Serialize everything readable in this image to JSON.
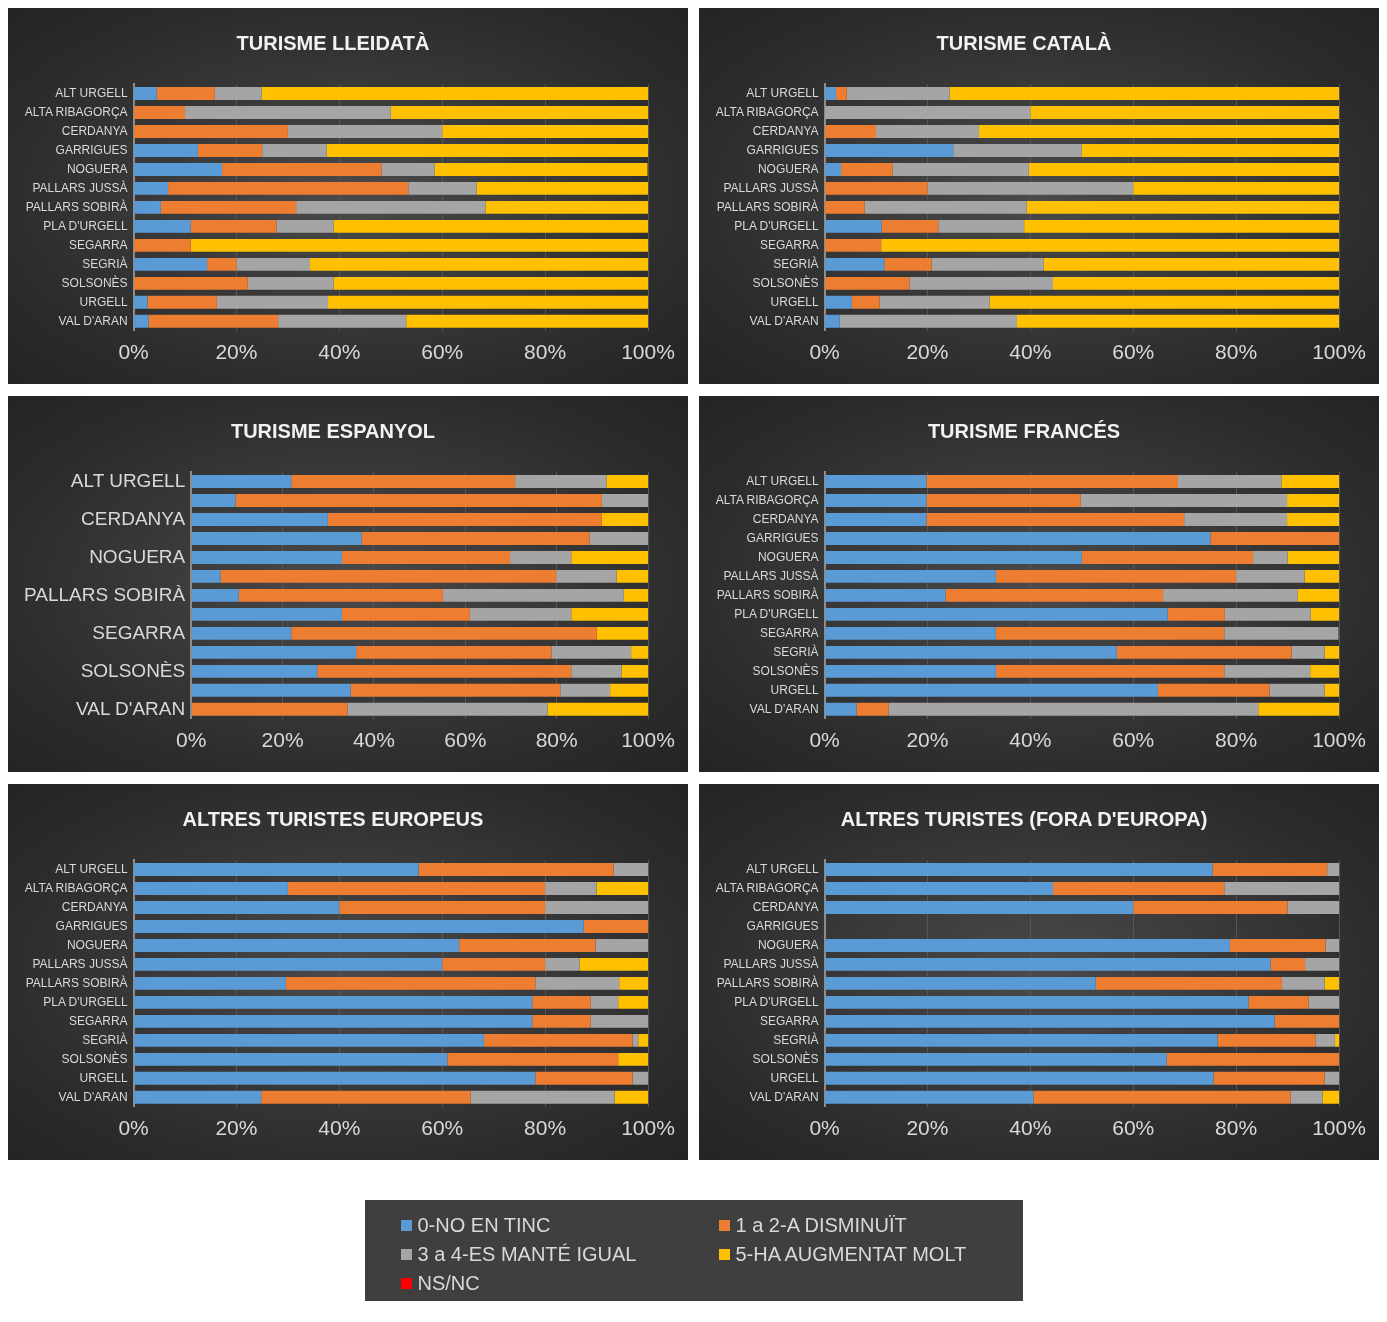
{
  "chart_data": [
    {
      "type": "bar",
      "orientation": "horizontal",
      "stacked": true,
      "title": "TURISME LLEIDATÀ",
      "categories": [
        "ALT URGELL",
        "ALTA RIBAGORÇA",
        "CERDANYA",
        "GARRIGUES",
        "NOGUERA",
        "PALLARS JUSSÀ",
        "PALLARS SOBIRÀ",
        "PLA D'URGELL",
        "SEGARRA",
        "SEGRIÀ",
        "SOLSONÈS",
        "URGELL",
        "VAL D'ARAN"
      ],
      "xlim": [
        0,
        100
      ],
      "xticks": [
        {
          "value": 0,
          "label": "0%"
        },
        {
          "value": 20,
          "label": "20%"
        },
        {
          "value": 40,
          "label": "40%"
        },
        {
          "value": 60,
          "label": "60%"
        },
        {
          "value": 80,
          "label": "80%"
        },
        {
          "value": 100,
          "label": "100%"
        }
      ],
      "grid": "x",
      "legend": "bottom",
      "series": [
        {
          "name": "0-NO EN TINC",
          "color": "#5b9bd5",
          "values": [
            4.5,
            0,
            0,
            12.5,
            17.2,
            6.7,
            5.3,
            11.1,
            0,
            14.3,
            0,
            2.7,
            2.9
          ]
        },
        {
          "name": "1 a 2-A DISMINUÏT",
          "color": "#ed7d31",
          "values": [
            11.3,
            10,
            30,
            12.5,
            31,
            46.7,
            26.3,
            16.7,
            11.1,
            5.7,
            22.2,
            13.5,
            25.2
          ]
        },
        {
          "name": "3 a 4-ES MANTÉ IGUAL",
          "color": "#a5a5a5",
          "values": [
            9.1,
            40,
            30,
            12.5,
            10.3,
            13.3,
            36.8,
            11.1,
            0,
            14.3,
            16.7,
            21.6,
            24.9
          ]
        },
        {
          "name": "5-HA AUGMENTAT MOLT",
          "color": "#ffc000",
          "values": [
            75.1,
            50,
            40,
            62.5,
            41.4,
            33.3,
            31.6,
            61.1,
            88.9,
            65.7,
            61.1,
            62.2,
            47
          ]
        },
        {
          "name": "NS/NC",
          "color": "#ff0000",
          "values": [
            0,
            0,
            0,
            0,
            0,
            0,
            0,
            0,
            0,
            0,
            0,
            0,
            0
          ]
        }
      ]
    },
    {
      "type": "bar",
      "orientation": "horizontal",
      "stacked": true,
      "title": "TURISME CATALÀ",
      "categories": [
        "ALT URGELL",
        "ALTA RIBAGORÇA",
        "CERDANYA",
        "GARRIGUES",
        "NOGUERA",
        "PALLARS JUSSÀ",
        "PALLARS SOBIRÀ",
        "PLA D'URGELL",
        "SEGARRA",
        "SEGRIÀ",
        "SOLSONÈS",
        "URGELL",
        "VAL D'ARAN"
      ],
      "xlim": [
        0,
        100
      ],
      "xticks": [
        {
          "value": 0,
          "label": "0%"
        },
        {
          "value": 20,
          "label": "20%"
        },
        {
          "value": 40,
          "label": "40%"
        },
        {
          "value": 60,
          "label": "60%"
        },
        {
          "value": 80,
          "label": "80%"
        },
        {
          "value": 100,
          "label": "100%"
        }
      ],
      "grid": "x",
      "series": [
        {
          "color": "#5b9bd5",
          "values": [
            2.2,
            0,
            0,
            25,
            3.2,
            0,
            0,
            11.1,
            0,
            11.6,
            0,
            5.3,
            2.9
          ]
        },
        {
          "color": "#ed7d31",
          "values": [
            2.1,
            0,
            10,
            0,
            10,
            20,
            7.8,
            11,
            11,
            9.2,
            16.5,
            5.4,
            0
          ]
        },
        {
          "color": "#a5a5a5",
          "values": [
            20,
            40,
            20,
            25,
            26.5,
            40,
            31.5,
            16.7,
            0,
            21.8,
            27.9,
            21.4,
            34.5
          ]
        },
        {
          "color": "#ffc000",
          "values": [
            75.7,
            60,
            70,
            50,
            60.3,
            40,
            60.7,
            61.2,
            89,
            57.4,
            55.6,
            67.9,
            62.6
          ]
        },
        {
          "color": "#ff0000",
          "values": [
            0,
            0,
            0,
            0,
            0,
            0,
            0,
            0,
            0,
            0,
            0,
            0,
            0
          ]
        }
      ]
    },
    {
      "type": "bar",
      "orientation": "horizontal",
      "stacked": true,
      "title": "TURISME ESPANYOL",
      "categories": [
        "ALT URGELL",
        null,
        "CERDANYA",
        null,
        "NOGUERA",
        null,
        "PALLARS SOBIRÀ",
        null,
        "SEGARRA",
        null,
        "SOLSONÈS",
        null,
        "VAL D'ARAN"
      ],
      "xlim": [
        0,
        100
      ],
      "xticks": [
        {
          "value": 0,
          "label": "0%"
        },
        {
          "value": 20,
          "label": "20%"
        },
        {
          "value": 40,
          "label": "40%"
        },
        {
          "value": 60,
          "label": "60%"
        },
        {
          "value": 80,
          "label": "80%"
        },
        {
          "value": 100,
          "label": "100%"
        }
      ],
      "grid": "x",
      "series": [
        {
          "color": "#5b9bd5",
          "values": [
            21.9,
            9.7,
            29.9,
            37.3,
            33,
            6.4,
            10.4,
            33,
            21.9,
            36.1,
            27.6,
            34.9,
            0
          ]
        },
        {
          "color": "#ed7d31",
          "values": [
            49,
            80.2,
            60,
            49.9,
            36.8,
            73.5,
            44.7,
            28,
            66.9,
            42.8,
            55.6,
            45.9,
            34.2
          ]
        },
        {
          "color": "#a5a5a5",
          "values": [
            20,
            10.1,
            0,
            12.8,
            13.4,
            13.2,
            39.6,
            22.2,
            0,
            17.4,
            11,
            10.9,
            43.8
          ]
        },
        {
          "color": "#ffc000",
          "values": [
            9.1,
            0,
            10.1,
            0,
            16.8,
            6.9,
            5.3,
            16.8,
            11.2,
            3.7,
            5.8,
            8.3,
            22
          ]
        },
        {
          "color": "#ff0000",
          "values": [
            0,
            0,
            0,
            0,
            0,
            0,
            0,
            0,
            0,
            0,
            0,
            0,
            0
          ]
        }
      ]
    },
    {
      "type": "bar",
      "orientation": "horizontal",
      "stacked": true,
      "title": "TURISME FRANCÉS",
      "categories": [
        "ALT URGELL",
        "ALTA RIBAGORÇA",
        "CERDANYA",
        "GARRIGUES",
        "NOGUERA",
        "PALLARS JUSSÀ",
        "PALLARS SOBIRÀ",
        "PLA D'URGELL",
        "SEGARRA",
        "SEGRIÀ",
        "SOLSONÈS",
        "URGELL",
        "VAL D'ARAN"
      ],
      "xlim": [
        0,
        100
      ],
      "xticks": [
        {
          "value": 0,
          "label": "0%"
        },
        {
          "value": 20,
          "label": "20%"
        },
        {
          "value": 40,
          "label": "40%"
        },
        {
          "value": 60,
          "label": "60%"
        },
        {
          "value": 80,
          "label": "80%"
        },
        {
          "value": 100,
          "label": "100%"
        }
      ],
      "grid": "x",
      "series": [
        {
          "color": "#5b9bd5",
          "values": [
            19.8,
            19.8,
            19.8,
            75,
            50,
            33.3,
            23.5,
            66.7,
            33.3,
            56.8,
            33.3,
            64.8,
            6.2
          ]
        },
        {
          "color": "#ed7d31",
          "values": [
            48.9,
            30,
            50.1,
            25,
            33.3,
            46.7,
            42.3,
            11.1,
            44.4,
            34,
            44.4,
            21.7,
            6.2
          ]
        },
        {
          "color": "#a5a5a5",
          "values": [
            20.1,
            40.1,
            20,
            0,
            6.7,
            13.3,
            26.2,
            16.7,
            22.2,
            6.4,
            16.7,
            10.7,
            71.9
          ]
        },
        {
          "color": "#ffc000",
          "values": [
            11.2,
            10.1,
            10.1,
            0,
            10,
            6.7,
            8,
            5.6,
            0,
            2.8,
            5.6,
            2.8,
            15.7
          ]
        },
        {
          "color": "#ff0000",
          "values": [
            0,
            0,
            0,
            0,
            0,
            0,
            0,
            0,
            0,
            0,
            0,
            0,
            0
          ]
        }
      ]
    },
    {
      "type": "bar",
      "orientation": "horizontal",
      "stacked": true,
      "title": "ALTRES TURISTES EUROPEUS",
      "categories": [
        "ALT URGELL",
        "ALTA RIBAGORÇA",
        "CERDANYA",
        "GARRIGUES",
        "NOGUERA",
        "PALLARS JUSSÀ",
        "PALLARS SOBIRÀ",
        "PLA D'URGELL",
        "SEGARRA",
        "SEGRIÀ",
        "SOLSONÈS",
        "URGELL",
        "VAL D'ARAN"
      ],
      "xlim": [
        0,
        100
      ],
      "xticks": [
        {
          "value": 0,
          "label": "0%"
        },
        {
          "value": 20,
          "label": "20%"
        },
        {
          "value": 40,
          "label": "40%"
        },
        {
          "value": 60,
          "label": "60%"
        },
        {
          "value": 80,
          "label": "80%"
        },
        {
          "value": 100,
          "label": "100%"
        }
      ],
      "grid": "x",
      "series": [
        {
          "color": "#5b9bd5",
          "values": [
            55.4,
            30,
            40,
            87.5,
            63.3,
            60,
            29.6,
            77.5,
            77.5,
            68.1,
            61,
            78.1,
            24.8
          ]
        },
        {
          "color": "#ed7d31",
          "values": [
            37.9,
            50,
            40,
            12.5,
            26.5,
            20,
            48.5,
            11.3,
            11.3,
            28.9,
            33.2,
            18.9,
            40.7
          ]
        },
        {
          "color": "#a5a5a5",
          "values": [
            6.7,
            10,
            20,
            0,
            10.2,
            6.7,
            16.3,
            5.4,
            11.2,
            1.1,
            0,
            3,
            28
          ]
        },
        {
          "color": "#ffc000",
          "values": [
            0,
            10,
            0,
            0,
            0,
            13.3,
            5.6,
            5.8,
            0,
            1.9,
            5.8,
            0,
            6.5
          ]
        },
        {
          "color": "#ff0000",
          "values": [
            0,
            0,
            0,
            0,
            0,
            0,
            0,
            0,
            0,
            0,
            0,
            0,
            0
          ]
        }
      ]
    },
    {
      "type": "bar",
      "orientation": "horizontal",
      "stacked": true,
      "title": "ALTRES TURISTES (FORA D'EUROPA)",
      "categories": [
        "ALT URGELL",
        "ALTA RIBAGORÇA",
        "CERDANYA",
        "GARRIGUES",
        "NOGUERA",
        "PALLARS JUSSÀ",
        "PALLARS SOBIRÀ",
        "PLA D'URGELL",
        "SEGARRA",
        "SEGRIÀ",
        "SOLSONÈS",
        "URGELL",
        "VAL D'ARAN"
      ],
      "xlim": [
        0,
        100
      ],
      "xticks": [
        {
          "value": 0,
          "label": "0%"
        },
        {
          "value": 20,
          "label": "20%"
        },
        {
          "value": 40,
          "label": "40%"
        },
        {
          "value": 60,
          "label": "60%"
        },
        {
          "value": 80,
          "label": "80%"
        },
        {
          "value": 100,
          "label": "100%"
        }
      ],
      "grid": "x",
      "series": [
        {
          "color": "#5b9bd5",
          "values": [
            75.4,
            44.4,
            60,
            null,
            78.8,
            86.7,
            52.7,
            82.4,
            87.5,
            76.4,
            66.5,
            75.6,
            40.6
          ]
        },
        {
          "color": "#ed7d31",
          "values": [
            22.3,
            33.3,
            30,
            null,
            18.6,
            6.7,
            36.2,
            11.7,
            12.5,
            19,
            33.5,
            21.6,
            50
          ]
        },
        {
          "color": "#a5a5a5",
          "values": [
            2.3,
            22.3,
            10,
            null,
            2.6,
            6.6,
            8.3,
            5.9,
            0,
            3.8,
            0,
            2.8,
            6.2
          ]
        },
        {
          "color": "#ffc000",
          "values": [
            0,
            0,
            0,
            null,
            0,
            0,
            2.8,
            0,
            0,
            0.8,
            0,
            0,
            3.2
          ]
        },
        {
          "color": "#ff0000",
          "values": [
            0,
            0,
            0,
            null,
            0,
            0,
            0,
            0,
            0,
            0,
            0,
            0,
            0
          ]
        }
      ]
    }
  ]
}
